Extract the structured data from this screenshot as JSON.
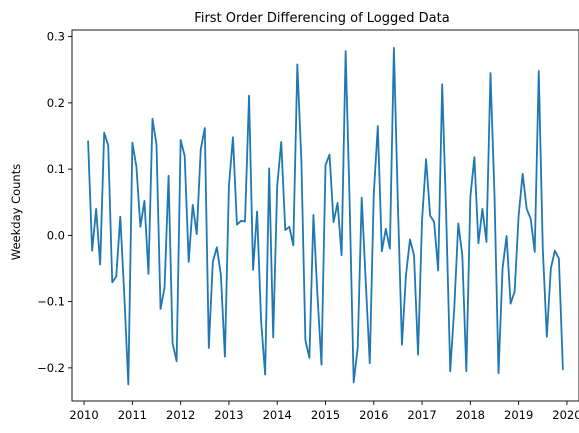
{
  "chart_data": {
    "type": "line",
    "title": "First Order Differencing of Logged Data",
    "xlabel": "",
    "ylabel": "Weekday Counts",
    "xlim": [
      2009.75,
      2020.25
    ],
    "ylim": [
      -0.25,
      0.31
    ],
    "x_ticks": [
      2010,
      2011,
      2012,
      2013,
      2014,
      2015,
      2016,
      2017,
      2018,
      2019,
      2020
    ],
    "y_ticks": [
      -0.2,
      -0.1,
      0.0,
      0.1,
      0.2,
      0.3
    ],
    "y_tick_labels": [
      "−0.2",
      "−0.1",
      "0.0",
      "0.1",
      "0.2",
      "0.3"
    ],
    "grid": false,
    "line_color": "#1f77b4",
    "x_start": 2010.0833,
    "x_step": 0.0833333,
    "series": [
      {
        "values": [
          0.142,
          -0.023,
          0.04,
          -0.044,
          0.155,
          0.136,
          -0.071,
          -0.062,
          0.028,
          -0.09,
          -0.225,
          0.14,
          0.104,
          0.013,
          0.052,
          -0.058,
          0.176,
          0.137,
          -0.111,
          -0.079,
          0.09,
          -0.163,
          -0.19,
          0.144,
          0.12,
          -0.04,
          0.046,
          0.002,
          0.13,
          0.162,
          -0.17,
          -0.04,
          -0.018,
          -0.06,
          -0.183,
          0.075,
          0.148,
          0.016,
          0.022,
          0.021,
          0.211,
          -0.052,
          0.036,
          -0.13,
          -0.21,
          0.101,
          -0.154,
          0.075,
          0.141,
          0.008,
          0.013,
          -0.015,
          0.258,
          0.114,
          -0.158,
          -0.185,
          0.031,
          -0.09,
          -0.195,
          0.106,
          0.122,
          0.02,
          0.049,
          -0.03,
          0.278,
          0.05,
          -0.222,
          -0.17,
          0.057,
          -0.07,
          -0.193,
          0.063,
          0.165,
          -0.024,
          0.01,
          -0.02,
          0.283,
          0.045,
          -0.165,
          -0.06,
          -0.006,
          -0.03,
          -0.18,
          0.024,
          0.115,
          0.03,
          0.02,
          -0.053,
          0.228,
          0.03,
          -0.205,
          -0.11,
          0.018,
          -0.03,
          -0.205,
          0.058,
          0.118,
          -0.012,
          0.04,
          -0.01,
          0.245,
          0.06,
          -0.208,
          -0.05,
          -0.001,
          -0.103,
          -0.085,
          0.03,
          0.093,
          0.04,
          0.025,
          -0.025,
          0.248,
          -0.02,
          -0.153,
          -0.05,
          -0.023,
          -0.035,
          -0.202
        ]
      }
    ]
  }
}
